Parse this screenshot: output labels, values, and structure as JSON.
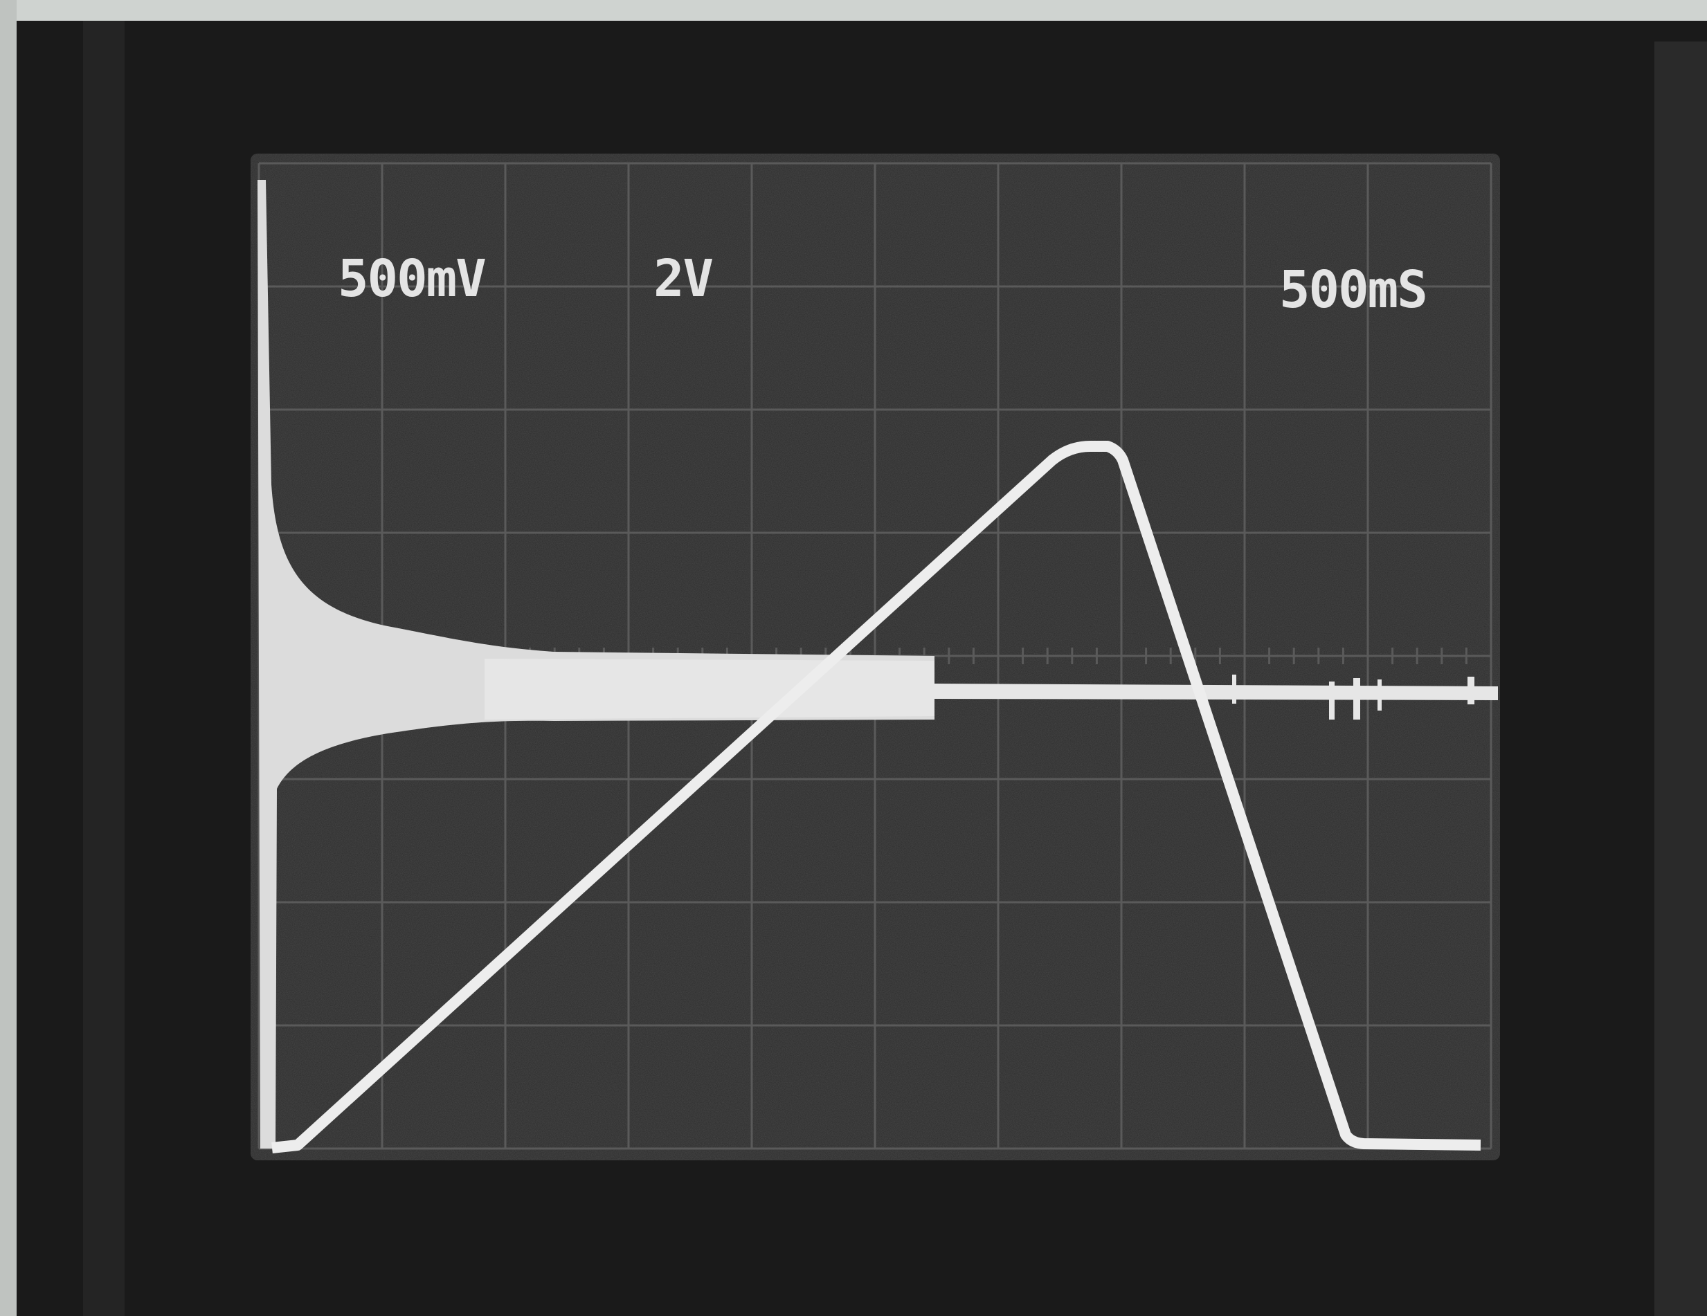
{
  "screen": {
    "labels": {
      "channel1_scale": "500mV",
      "channel2_scale": "2V",
      "time_scale": "500mS"
    }
  }
}
